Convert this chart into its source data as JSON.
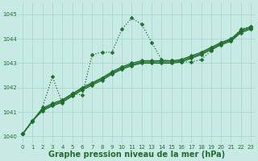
{
  "xlabel": "Graphe pression niveau de la mer (hPa)",
  "xlim": [
    -0.5,
    23.5
  ],
  "ylim": [
    1039.7,
    1045.5
  ],
  "yticks": [
    1040,
    1041,
    1042,
    1043,
    1044,
    1045
  ],
  "xticks": [
    0,
    1,
    2,
    3,
    4,
    5,
    6,
    7,
    8,
    9,
    10,
    11,
    12,
    13,
    14,
    15,
    16,
    17,
    18,
    19,
    20,
    21,
    22,
    23
  ],
  "bg_color": "#c8eae4",
  "line_color": "#1e6e2e",
  "grid_color": "#a8d4cc",
  "series_dotted": {
    "x": [
      0,
      1,
      2,
      3,
      4,
      5,
      6,
      7,
      8,
      9,
      10,
      11,
      12,
      13,
      14,
      15,
      16,
      17,
      18,
      19,
      20,
      21,
      22,
      23
    ],
    "y": [
      1040.1,
      1040.6,
      1041.2,
      1042.45,
      1041.35,
      1041.75,
      1041.7,
      1043.35,
      1043.45,
      1043.45,
      1044.4,
      1044.85,
      1044.6,
      1043.85,
      1043.15,
      1043.1,
      1043.05,
      1043.05,
      1043.15,
      1043.5,
      1043.85,
      1043.95,
      1044.4,
      1044.5
    ]
  },
  "series_linear": [
    [
      1040.1,
      1040.65,
      1041.15,
      1041.35,
      1041.5,
      1041.75,
      1042.0,
      1042.2,
      1042.4,
      1042.65,
      1042.85,
      1043.0,
      1043.1,
      1043.1,
      1043.1,
      1043.1,
      1043.15,
      1043.3,
      1043.45,
      1043.65,
      1043.85,
      1044.0,
      1044.35,
      1044.5
    ],
    [
      1040.1,
      1040.65,
      1041.1,
      1041.3,
      1041.45,
      1041.7,
      1041.95,
      1042.15,
      1042.35,
      1042.6,
      1042.8,
      1042.95,
      1043.05,
      1043.05,
      1043.05,
      1043.05,
      1043.1,
      1043.25,
      1043.4,
      1043.6,
      1043.8,
      1043.95,
      1044.3,
      1044.45
    ],
    [
      1040.1,
      1040.65,
      1041.05,
      1041.25,
      1041.4,
      1041.65,
      1041.9,
      1042.1,
      1042.3,
      1042.55,
      1042.75,
      1042.9,
      1043.0,
      1043.0,
      1043.0,
      1043.0,
      1043.05,
      1043.2,
      1043.35,
      1043.55,
      1043.75,
      1043.9,
      1044.25,
      1044.4
    ]
  ],
  "marker": "D",
  "markersize": 2.5,
  "linewidth": 0.9,
  "xlabel_fontsize": 7,
  "tick_fontsize": 5,
  "xlabel_fontweight": "bold"
}
